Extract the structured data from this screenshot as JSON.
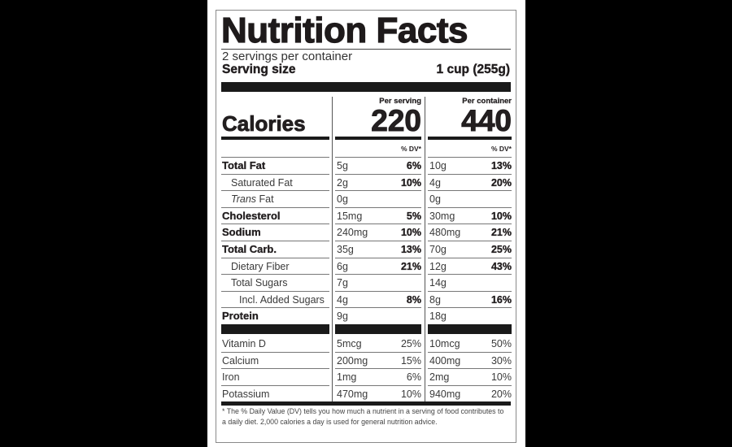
{
  "label": {
    "title": "Nutrition Facts",
    "servings_per_container": "2 servings per container",
    "serving_size_label": "Serving size",
    "serving_size_value": "1 cup (255g)",
    "calories_label": "Calories",
    "columns": [
      {
        "header": "Per serving",
        "calories": "220",
        "dv_header": "% DV*"
      },
      {
        "header": "Per container",
        "calories": "440",
        "dv_header": "% DV*"
      }
    ],
    "nutrients": [
      {
        "name": "Total Fat",
        "style": "bold",
        "indent": 0,
        "serving_amt": "5g",
        "serving_dv": "6%",
        "container_amt": "10g",
        "container_dv": "13%"
      },
      {
        "name": "Saturated Fat",
        "style": "normal",
        "indent": 1,
        "serving_amt": "2g",
        "serving_dv": "10%",
        "container_amt": "4g",
        "container_dv": "20%"
      },
      {
        "name_italic": "Trans",
        "name": " Fat",
        "style": "normal",
        "indent": 1,
        "serving_amt": "0g",
        "serving_dv": "",
        "container_amt": "0g",
        "container_dv": ""
      },
      {
        "name": "Cholesterol",
        "style": "bold",
        "indent": 0,
        "serving_amt": "15mg",
        "serving_dv": "5%",
        "container_amt": "30mg",
        "container_dv": "10%"
      },
      {
        "name": "Sodium",
        "style": "bold",
        "indent": 0,
        "serving_amt": "240mg",
        "serving_dv": "10%",
        "container_amt": "480mg",
        "container_dv": "21%"
      },
      {
        "name": "Total Carb.",
        "style": "bold",
        "indent": 0,
        "serving_amt": "35g",
        "serving_dv": "13%",
        "container_amt": "70g",
        "container_dv": "25%"
      },
      {
        "name": "Dietary Fiber",
        "style": "normal",
        "indent": 1,
        "serving_amt": "6g",
        "serving_dv": "21%",
        "container_amt": "12g",
        "container_dv": "43%"
      },
      {
        "name": "Total Sugars",
        "style": "normal",
        "indent": 1,
        "serving_amt": "7g",
        "serving_dv": "",
        "container_amt": "14g",
        "container_dv": ""
      },
      {
        "name": "Incl. Added Sugars",
        "style": "normal",
        "indent": 2,
        "serving_amt": "4g",
        "serving_dv": "8%",
        "container_amt": "8g",
        "container_dv": "16%"
      },
      {
        "name": "Protein",
        "style": "bold",
        "indent": 0,
        "serving_amt": "9g",
        "serving_dv": "",
        "container_amt": "18g",
        "container_dv": ""
      }
    ],
    "vitamins": [
      {
        "name": "Vitamin D",
        "serving_amt": "5mcg",
        "serving_dv": "25%",
        "container_amt": "10mcg",
        "container_dv": "50%"
      },
      {
        "name": "Calcium",
        "serving_amt": "200mg",
        "serving_dv": "15%",
        "container_amt": "400mg",
        "container_dv": "30%"
      },
      {
        "name": "Iron",
        "serving_amt": "1mg",
        "serving_dv": "6%",
        "container_amt": "2mg",
        "container_dv": "10%"
      },
      {
        "name": "Potassium",
        "serving_amt": "470mg",
        "serving_dv": "10%",
        "container_amt": "940mg",
        "container_dv": "20%"
      }
    ],
    "footnote": "* The % Daily Value (DV) tells you how much a nutrient in a serving of food contributes to a daily diet. 2,000 calories a day is used for general nutrition advice."
  }
}
